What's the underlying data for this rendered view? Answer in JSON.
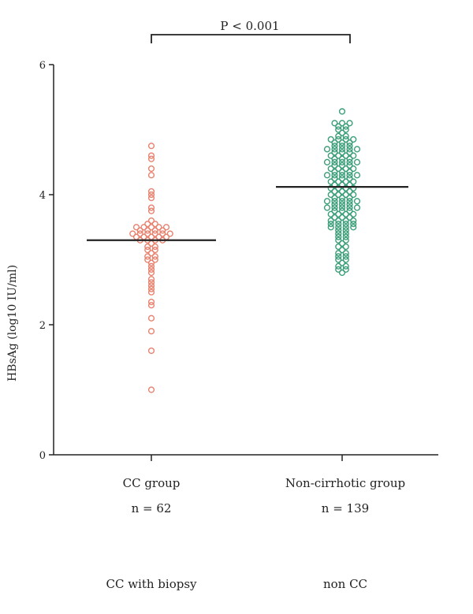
{
  "chart_data": {
    "type": "scatter",
    "subtype": "dot-plot",
    "ylabel": "HBsAg (log10 IU/ml)",
    "ylim": [
      0,
      6
    ],
    "yticks": [
      0,
      2,
      4,
      6
    ],
    "significance": "P < 0.001",
    "groups": [
      {
        "label": "CC group",
        "n_label": "n = 62",
        "footer": "CC with biopsy",
        "color": "#e8826e",
        "median": 3.3,
        "points": [
          4.75,
          4.6,
          4.55,
          4.4,
          4.3,
          4.05,
          4.0,
          3.95,
          3.8,
          3.75,
          3.6,
          3.55,
          3.55,
          3.5,
          3.5,
          3.5,
          3.5,
          3.45,
          3.45,
          3.45,
          3.45,
          3.4,
          3.4,
          3.4,
          3.4,
          3.4,
          3.4,
          3.35,
          3.35,
          3.35,
          3.35,
          3.35,
          3.3,
          3.3,
          3.3,
          3.3,
          3.25,
          3.2,
          3.2,
          3.15,
          3.15,
          3.1,
          3.05,
          3.05,
          3.0,
          3.0,
          2.95,
          2.9,
          2.85,
          2.8,
          2.7,
          2.65,
          2.6,
          2.55,
          2.5,
          2.35,
          2.3,
          2.1,
          1.9,
          1.6,
          1.0,
          3.5
        ]
      },
      {
        "label": "Non-cirrhotic group",
        "n_label": "n = 139",
        "footer": "non CC",
        "color": "#3a9e78",
        "median": 4.12,
        "points": [
          5.28,
          5.1,
          5.1,
          5.1,
          5.05,
          5.05,
          5.0,
          5.0,
          4.95,
          4.9,
          4.9,
          4.85,
          4.85,
          4.85,
          4.85,
          4.8,
          4.8,
          4.8,
          4.75,
          4.75,
          4.75,
          4.7,
          4.7,
          4.7,
          4.7,
          4.7,
          4.65,
          4.65,
          4.65,
          4.6,
          4.6,
          4.6,
          4.55,
          4.55,
          4.55,
          4.5,
          4.5,
          4.5,
          4.5,
          4.45,
          4.45,
          4.45,
          4.4,
          4.4,
          4.4,
          4.35,
          4.35,
          4.35,
          4.3,
          4.3,
          4.3,
          4.3,
          4.25,
          4.25,
          4.25,
          4.2,
          4.2,
          4.2,
          4.2,
          4.15,
          4.15,
          4.15,
          4.1,
          4.1,
          4.1,
          4.05,
          4.05,
          4.05,
          4.0,
          4.0,
          4.0,
          3.95,
          3.95,
          3.95,
          3.9,
          3.9,
          3.9,
          3.9,
          3.85,
          3.85,
          3.85,
          3.8,
          3.8,
          3.8,
          3.8,
          3.75,
          3.75,
          3.75,
          3.7,
          3.7,
          3.7,
          3.65,
          3.65,
          3.65,
          3.6,
          3.6,
          3.6,
          3.55,
          3.55,
          3.55,
          3.55,
          3.5,
          3.5,
          3.5,
          3.5,
          3.45,
          3.45,
          3.4,
          3.4,
          3.35,
          3.35,
          3.3,
          3.3,
          3.25,
          3.2,
          3.2,
          3.15,
          3.1,
          3.1,
          3.05,
          3.05,
          3.0,
          3.0,
          2.95,
          2.9,
          2.9,
          2.85,
          2.85,
          2.8,
          4.5,
          4.4,
          3.6,
          3.7,
          4.0,
          3.9,
          4.3,
          3.8,
          4.6,
          4.1
        ]
      }
    ]
  }
}
